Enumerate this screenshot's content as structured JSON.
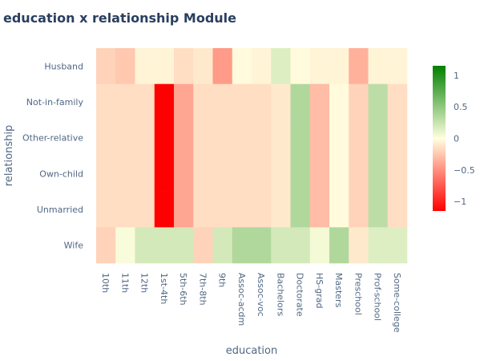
{
  "chart_data": {
    "type": "heatmap",
    "title": "education x relationship Module",
    "xlabel": "education",
    "ylabel": "relationship",
    "x": [
      "10th",
      "11th",
      "12th",
      "1st-4th",
      "5th-6th",
      "7th-8th",
      "9th",
      "Assoc-acdm",
      "Assoc-voc",
      "Bachelors",
      "Doctorate",
      "HS-grad",
      "Masters",
      "Preschool",
      "Prof-school",
      "Some-college"
    ],
    "y": [
      "Husband",
      "Not-in-family",
      "Other-relative",
      "Own-child",
      "Unmarried",
      "Wife"
    ],
    "z": [
      [
        -0.2,
        -0.25,
        -0.05,
        -0.05,
        -0.15,
        -0.1,
        -0.45,
        -0.02,
        -0.05,
        0.15,
        -0.02,
        -0.05,
        -0.05,
        -0.35,
        -0.05,
        -0.05
      ],
      [
        -0.15,
        -0.15,
        -0.15,
        -1.15,
        -0.4,
        -0.15,
        -0.15,
        -0.15,
        -0.15,
        -0.1,
        0.35,
        -0.3,
        -0.02,
        -0.2,
        0.3,
        -0.15
      ],
      [
        -0.15,
        -0.15,
        -0.15,
        -1.15,
        -0.4,
        -0.15,
        -0.15,
        -0.15,
        -0.15,
        -0.1,
        0.35,
        -0.3,
        -0.02,
        -0.2,
        0.3,
        -0.15
      ],
      [
        -0.15,
        -0.15,
        -0.15,
        -1.15,
        -0.4,
        -0.15,
        -0.15,
        -0.15,
        -0.15,
        -0.1,
        0.35,
        -0.3,
        -0.02,
        -0.2,
        0.3,
        -0.15
      ],
      [
        -0.15,
        -0.15,
        -0.15,
        -1.15,
        -0.4,
        -0.15,
        -0.15,
        -0.15,
        -0.15,
        -0.1,
        0.35,
        -0.3,
        -0.02,
        -0.2,
        0.3,
        -0.15
      ],
      [
        -0.2,
        0.03,
        0.2,
        0.2,
        0.2,
        -0.2,
        0.2,
        0.35,
        0.35,
        0.2,
        0.2,
        0.05,
        0.35,
        -0.1,
        0.15,
        0.15
      ]
    ],
    "zmin": -1.15,
    "zmax": 1.15,
    "colorscale": [
      [
        0.0,
        "#ff0000"
      ],
      [
        0.5,
        "#ffffe0"
      ],
      [
        1.0,
        "#008000"
      ]
    ],
    "colorbar_ticks": [
      {
        "value": 1,
        "label": "1"
      },
      {
        "value": 0.5,
        "label": "0.5"
      },
      {
        "value": 0,
        "label": "0"
      },
      {
        "value": -0.5,
        "label": "−0.5"
      },
      {
        "value": -1,
        "label": "−1"
      }
    ]
  }
}
